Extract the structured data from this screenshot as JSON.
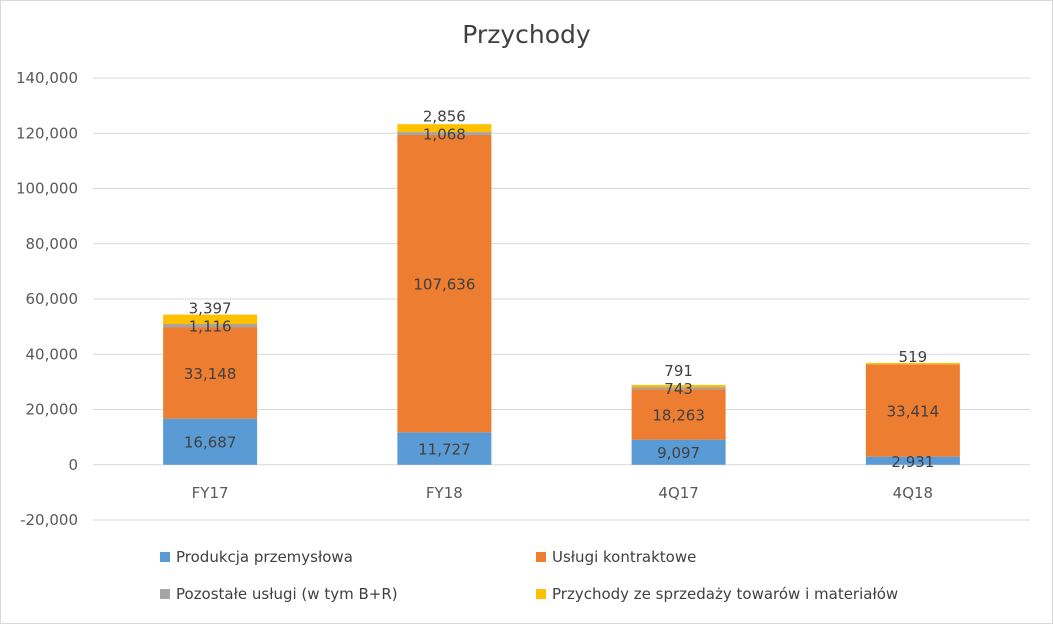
{
  "chart_data": {
    "type": "bar",
    "stacked": true,
    "title": "Przychody",
    "categories": [
      "FY17",
      "FY18",
      "4Q17",
      "4Q18"
    ],
    "ylim": [
      -20000,
      140000
    ],
    "yticks": [
      -20000,
      0,
      20000,
      40000,
      60000,
      80000,
      100000,
      120000,
      140000
    ],
    "ytick_labels": [
      "-20,000",
      "0",
      "20,000",
      "40,000",
      "60,000",
      "80,000",
      "100,000",
      "120,000",
      "140,000"
    ],
    "grid": true,
    "legend_position": "bottom",
    "series": [
      {
        "name": "Produkcja przemysłowa",
        "color": "#5b9bd5",
        "values": [
          16687,
          11727,
          9097,
          2931
        ],
        "labels": [
          "16,687",
          "11,727",
          "9,097",
          "2,931"
        ]
      },
      {
        "name": "Usługi kontraktowe",
        "color": "#ed7d31",
        "values": [
          33148,
          107636,
          18263,
          33414
        ],
        "labels": [
          "33,148",
          "107,636",
          "18,263",
          "33,414"
        ]
      },
      {
        "name": "Pozostałe usługi (w tym B+R)",
        "color": "#a5a5a5",
        "values": [
          1116,
          1068,
          743,
          0
        ],
        "labels": [
          "1,116",
          "1,068",
          "743",
          ""
        ]
      },
      {
        "name": "Przychody ze sprzedaży towarów i materiałów",
        "color": "#ffc000",
        "values": [
          3397,
          2856,
          791,
          519
        ],
        "labels": [
          "3,397",
          "2,856",
          "791",
          "519"
        ]
      }
    ]
  }
}
